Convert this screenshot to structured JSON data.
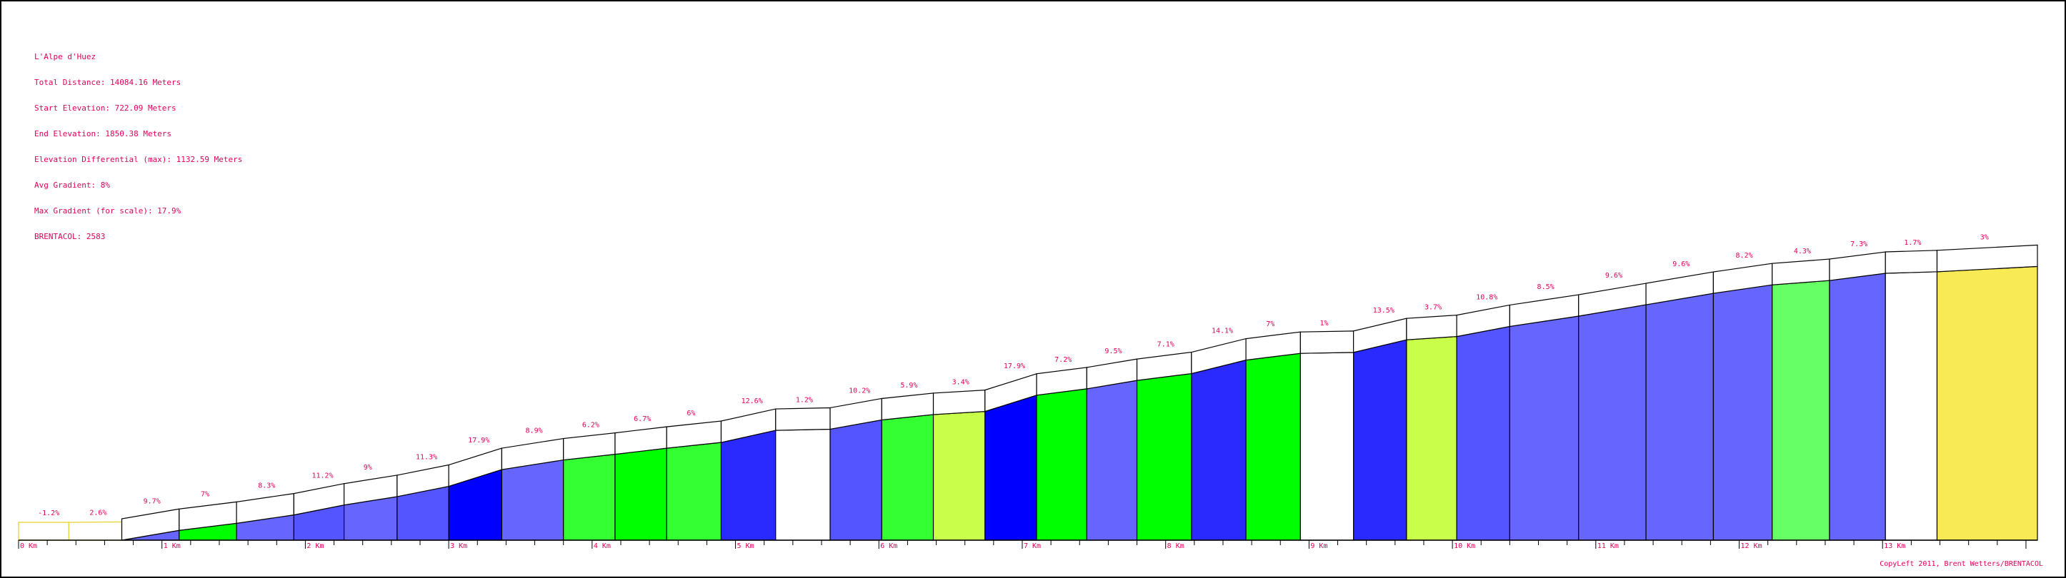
{
  "info": {
    "title": "L'Alpe d'Huez",
    "total_distance": "Total Distance: 14084.16 Meters",
    "start_elevation": "Start Elevation: 722.09 Meters",
    "end_elevation": "End Elevation: 1850.38 Meters",
    "elevation_differential": "Elevation Differential (max): 1132.59 Meters",
    "avg_gradient": "Avg Gradient: 8%",
    "max_gradient": "Max Gradient (for scale): 17.9%",
    "brentacol": "BRENTACOL: 2583"
  },
  "copyright": "CopyLeft 2011, Brent Wetters/BRENTACOL",
  "colors": {
    "label": "#e0005a",
    "lead_in_outline": "#e8d84a",
    "palette": [
      "#ffffff",
      "#f7ea55",
      "#c9ff4a",
      "#66ff66",
      "#33ff33",
      "#00ff00",
      "#6666ff",
      "#5555ff",
      "#2a2aff",
      "#0000ff"
    ]
  },
  "chart_data": {
    "type": "area",
    "title": "L'Alpe d'Huez",
    "xlabel": "",
    "ylabel": "",
    "x_unit": "km",
    "xlim": [
      0,
      14.08
    ],
    "ylim": [
      700,
      1900
    ],
    "x_ticks": [
      "0 Km",
      "1 Km",
      "2 Km",
      "3 Km",
      "4 Km",
      "5 Km",
      "6 Km",
      "7 Km",
      "8 Km",
      "9 Km",
      "10 Km",
      "11 Km",
      "12 Km",
      "13 Km"
    ],
    "lead_in": [
      {
        "label": "-1.2%",
        "x0": 0.0,
        "x1": 0.35,
        "gradient": -1.2
      },
      {
        "label": "2.6%",
        "x0": 0.35,
        "x1": 0.72,
        "gradient": 2.6
      }
    ],
    "segments": [
      {
        "label": "9.7%",
        "x0": 0.72,
        "x1": 1.12,
        "gradient": 9.7
      },
      {
        "label": "7%",
        "x0": 1.12,
        "x1": 1.52,
        "gradient": 7.0
      },
      {
        "label": "8.3%",
        "x0": 1.52,
        "x1": 1.92,
        "gradient": 8.3
      },
      {
        "label": "11.2%",
        "x0": 1.92,
        "x1": 2.27,
        "gradient": 11.2
      },
      {
        "label": "9%",
        "x0": 2.27,
        "x1": 2.64,
        "gradient": 9.0
      },
      {
        "label": "11.3%",
        "x0": 2.64,
        "x1": 3.0,
        "gradient": 11.3
      },
      {
        "label": "17.9%",
        "x0": 3.0,
        "x1": 3.37,
        "gradient": 17.9
      },
      {
        "label": "8.9%",
        "x0": 3.37,
        "x1": 3.8,
        "gradient": 8.9
      },
      {
        "label": "6.2%",
        "x0": 3.8,
        "x1": 4.16,
        "gradient": 6.2
      },
      {
        "label": "6.7%",
        "x0": 4.16,
        "x1": 4.52,
        "gradient": 6.7
      },
      {
        "label": "6%",
        "x0": 4.52,
        "x1": 4.9,
        "gradient": 6.0
      },
      {
        "label": "12.6%",
        "x0": 4.9,
        "x1": 5.28,
        "gradient": 12.6
      },
      {
        "label": "1.2%",
        "x0": 5.28,
        "x1": 5.66,
        "gradient": 1.2
      },
      {
        "label": "10.2%",
        "x0": 5.66,
        "x1": 6.02,
        "gradient": 10.2
      },
      {
        "label": "5.9%",
        "x0": 6.02,
        "x1": 6.38,
        "gradient": 5.9
      },
      {
        "label": "3.4%",
        "x0": 6.38,
        "x1": 6.74,
        "gradient": 3.4
      },
      {
        "label": "17.9%",
        "x0": 6.74,
        "x1": 7.1,
        "gradient": 17.9
      },
      {
        "label": "7.2%",
        "x0": 7.1,
        "x1": 7.45,
        "gradient": 7.2
      },
      {
        "label": "9.5%",
        "x0": 7.45,
        "x1": 7.8,
        "gradient": 9.5
      },
      {
        "label": "7.1%",
        "x0": 7.8,
        "x1": 8.18,
        "gradient": 7.1
      },
      {
        "label": "14.1%",
        "x0": 8.18,
        "x1": 8.56,
        "gradient": 14.1
      },
      {
        "label": "7%",
        "x0": 8.56,
        "x1": 8.94,
        "gradient": 7.0
      },
      {
        "label": "1%",
        "x0": 8.94,
        "x1": 9.31,
        "gradient": 1.0
      },
      {
        "label": "13.5%",
        "x0": 9.31,
        "x1": 9.68,
        "gradient": 13.5
      },
      {
        "label": "3.7%",
        "x0": 9.68,
        "x1": 10.03,
        "gradient": 3.7
      },
      {
        "label": "10.8%",
        "x0": 10.03,
        "x1": 10.4,
        "gradient": 10.8
      },
      {
        "label": "8.5%",
        "x0": 10.4,
        "x1": 10.88,
        "gradient": 8.5
      },
      {
        "label": "9.6%",
        "x0": 10.88,
        "x1": 11.35,
        "gradient": 9.6
      },
      {
        "label": "9.6%",
        "x0": 11.35,
        "x1": 11.82,
        "gradient": 9.6
      },
      {
        "label": "8.2%",
        "x0": 11.82,
        "x1": 12.23,
        "gradient": 8.2
      },
      {
        "label": "4.3%",
        "x0": 12.23,
        "x1": 12.63,
        "gradient": 4.3
      },
      {
        "label": "7.3%",
        "x0": 12.63,
        "x1": 13.02,
        "gradient": 7.3
      },
      {
        "label": "1.7%",
        "x0": 13.02,
        "x1": 13.38,
        "gradient": 1.7
      },
      {
        "label": "3%",
        "x0": 13.38,
        "x1": 14.08,
        "gradient": 3.0
      }
    ]
  }
}
